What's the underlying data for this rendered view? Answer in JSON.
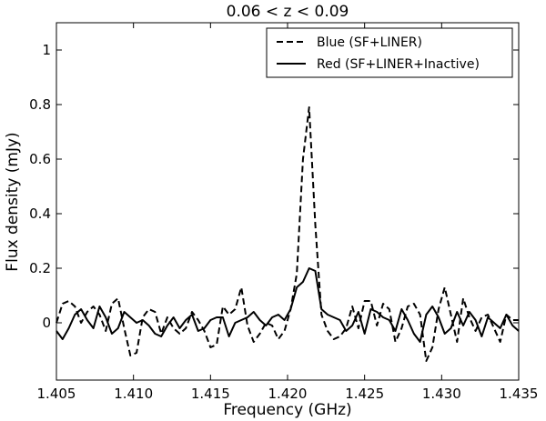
{
  "chart_data": {
    "type": "line",
    "title": "0.06 < z < 0.09",
    "xlabel": "Frequency (GHz)",
    "ylabel": "Flux density (mJy)",
    "xlim": [
      1.405,
      1.435
    ],
    "ylim": [
      -0.21,
      1.1
    ],
    "xticks": [
      {
        "value": 1.405,
        "label": "1.405"
      },
      {
        "value": 1.41,
        "label": "1.410"
      },
      {
        "value": 1.415,
        "label": "1.415"
      },
      {
        "value": 1.42,
        "label": "1.420"
      },
      {
        "value": 1.425,
        "label": "1.425"
      },
      {
        "value": 1.43,
        "label": "1.430"
      },
      {
        "value": 1.435,
        "label": "1.435"
      }
    ],
    "yticks": [
      {
        "value": 0,
        "label": "0"
      },
      {
        "value": 0.2,
        "label": "0.2"
      },
      {
        "value": 0.4,
        "label": "0.4"
      },
      {
        "value": 0.6,
        "label": "0.6"
      },
      {
        "value": 0.8,
        "label": "0.8"
      },
      {
        "value": 1,
        "label": "1"
      }
    ],
    "grid": false,
    "legend": "top-right",
    "x": [
      1.405,
      1.4054,
      1.4058,
      1.4062,
      1.4066,
      1.407,
      1.4074,
      1.4078,
      1.4082,
      1.4086,
      1.409,
      1.4094,
      1.4098,
      1.4102,
      1.4106,
      1.411,
      1.4114,
      1.4118,
      1.4122,
      1.4126,
      1.413,
      1.4134,
      1.4138,
      1.4142,
      1.4146,
      1.415,
      1.4154,
      1.4158,
      1.4162,
      1.4166,
      1.417,
      1.4174,
      1.4178,
      1.4182,
      1.4186,
      1.419,
      1.4194,
      1.4198,
      1.4202,
      1.4206,
      1.421,
      1.4214,
      1.4218,
      1.4222,
      1.4226,
      1.423,
      1.4234,
      1.4238,
      1.4242,
      1.4246,
      1.425,
      1.4254,
      1.4258,
      1.4262,
      1.4266,
      1.427,
      1.4274,
      1.4278,
      1.4282,
      1.4286,
      1.429,
      1.4294,
      1.4298,
      1.4302,
      1.4306,
      1.431,
      1.4314,
      1.4318,
      1.4322,
      1.4326,
      1.433,
      1.4334,
      1.4338,
      1.4342,
      1.4346,
      1.435
    ],
    "series": [
      {
        "name": "Blue (SF+LINER)",
        "style": "dashed",
        "color": "#000000",
        "values": [
          0.0,
          0.07,
          0.08,
          0.06,
          0.0,
          0.04,
          0.06,
          0.03,
          -0.03,
          0.07,
          0.09,
          -0.02,
          -0.12,
          -0.11,
          0.02,
          0.05,
          0.04,
          -0.04,
          0.02,
          -0.02,
          -0.04,
          -0.02,
          0.04,
          0.01,
          -0.03,
          -0.09,
          -0.08,
          0.06,
          0.03,
          0.05,
          0.13,
          -0.01,
          -0.07,
          -0.04,
          0.0,
          -0.01,
          -0.06,
          -0.03,
          0.05,
          0.18,
          0.6,
          0.79,
          0.36,
          0.03,
          -0.03,
          -0.06,
          -0.05,
          -0.02,
          0.06,
          -0.02,
          0.08,
          0.08,
          -0.01,
          0.07,
          0.05,
          -0.07,
          -0.02,
          0.06,
          0.07,
          0.03,
          -0.14,
          -0.09,
          0.05,
          0.13,
          0.03,
          -0.07,
          0.09,
          0.02,
          -0.03,
          0.02,
          0.03,
          -0.02,
          -0.07,
          0.03,
          0.01,
          0.01
        ]
      },
      {
        "name": "Red (SF+LINER+Inactive)",
        "style": "solid",
        "color": "#000000",
        "values": [
          -0.03,
          -0.06,
          -0.02,
          0.03,
          0.05,
          0.01,
          -0.02,
          0.06,
          0.02,
          -0.04,
          -0.02,
          0.04,
          0.02,
          0.0,
          0.01,
          -0.01,
          -0.04,
          -0.05,
          -0.01,
          0.02,
          -0.02,
          0.01,
          0.03,
          -0.03,
          -0.02,
          0.01,
          0.02,
          0.02,
          -0.05,
          0.0,
          0.01,
          0.02,
          0.04,
          0.01,
          -0.01,
          0.02,
          0.03,
          0.01,
          0.05,
          0.13,
          0.15,
          0.2,
          0.19,
          0.05,
          0.03,
          0.02,
          0.01,
          -0.03,
          -0.01,
          0.04,
          -0.04,
          0.05,
          0.04,
          0.02,
          0.01,
          -0.03,
          0.05,
          0.01,
          -0.04,
          -0.07,
          0.03,
          0.06,
          0.02,
          -0.04,
          -0.02,
          0.04,
          -0.01,
          0.04,
          0.01,
          -0.05,
          0.02,
          0.0,
          -0.02,
          0.03,
          -0.01,
          -0.03
        ]
      }
    ]
  }
}
